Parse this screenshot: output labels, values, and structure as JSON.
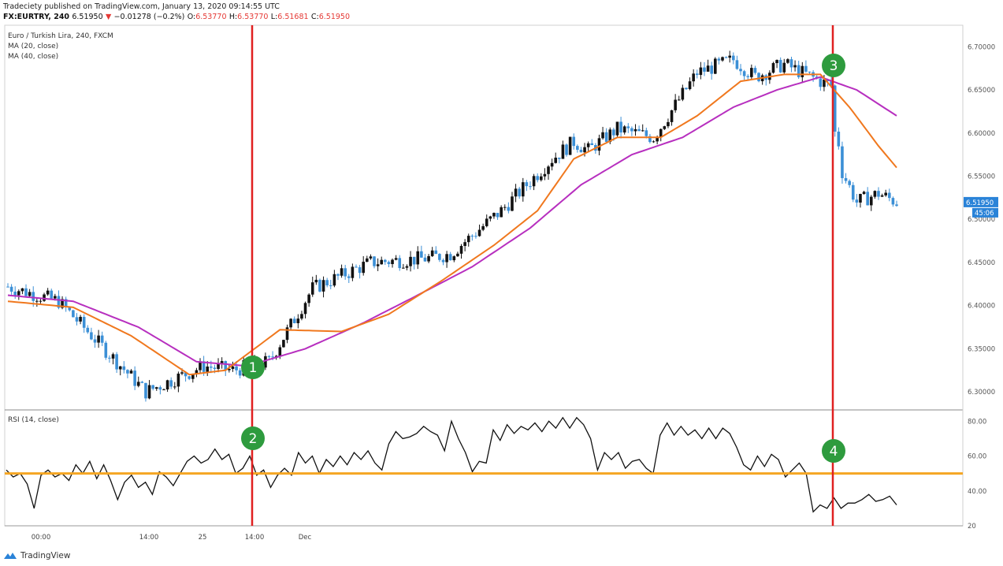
{
  "header": {
    "publisher_line": "Tradeciety published on TradingView.com, January 13, 2020 09:14:55 UTC",
    "symbol": "FX:EURTRY, 240",
    "last": "6.51950",
    "arrow": "▼",
    "change": "−0.01278 (−0.2%)",
    "o_label": "O:",
    "o": "6.53770",
    "h_label": "H:",
    "h": "6.53770",
    "l_label": "L:",
    "l": "6.51681",
    "c_label": "C:",
    "c": "6.51950"
  },
  "legend": {
    "title": "Euro / Turkish Lira, 240, FXCM",
    "ma20": "MA (20, close)",
    "ma40": "MA (40, close)",
    "rsi": "RSI (14, close)"
  },
  "footer": {
    "brand": "TradingView"
  },
  "colors": {
    "up": "#111111",
    "down": "#3b8fd6",
    "ma20": "#f0781e",
    "ma40": "#b72fbf",
    "marker_line": "#e02020",
    "rsi_line": "#111111",
    "rsi_level": "#f5a623",
    "badge": "#2e9b3e",
    "price_label_bg": "#2a83d8"
  },
  "chart_data": [
    {
      "type": "candlestick",
      "title": "Euro / Turkish Lira, 240, FXCM",
      "price_ticks": [
        "6.70000",
        "6.65000",
        "6.60000",
        "6.55000",
        "6.50000",
        "6.45000",
        "6.40000",
        "6.35000",
        "6.30000"
      ],
      "ylim": [
        6.28,
        6.725
      ],
      "x_ticks": [
        "00:00",
        "14:00",
        "25",
        "14:00",
        "Dec"
      ],
      "current_price_label": "6.51950",
      "countdown_label": "45:06",
      "key_points": [
        {
          "bar": 0,
          "price": 6.422
        },
        {
          "bar": 14,
          "price": 6.405
        },
        {
          "bar": 38,
          "price": 6.3
        },
        {
          "bar": 54,
          "price": 6.33
        },
        {
          "bar": 62,
          "price": 6.325
        },
        {
          "bar": 72,
          "price": 6.335
        },
        {
          "bar": 84,
          "price": 6.42
        },
        {
          "bar": 100,
          "price": 6.45
        },
        {
          "bar": 116,
          "price": 6.455
        },
        {
          "bar": 122,
          "price": 6.46
        },
        {
          "bar": 136,
          "price": 6.51
        },
        {
          "bar": 150,
          "price": 6.57
        },
        {
          "bar": 156,
          "price": 6.59
        },
        {
          "bar": 160,
          "price": 6.58
        },
        {
          "bar": 168,
          "price": 6.605
        },
        {
          "bar": 178,
          "price": 6.595
        },
        {
          "bar": 190,
          "price": 6.67
        },
        {
          "bar": 200,
          "price": 6.685
        },
        {
          "bar": 206,
          "price": 6.665
        },
        {
          "bar": 214,
          "price": 6.68
        },
        {
          "bar": 224,
          "price": 6.66
        },
        {
          "bar": 227,
          "price": 6.655
        },
        {
          "bar": 230,
          "price": 6.555
        },
        {
          "bar": 234,
          "price": 6.52
        },
        {
          "bar": 240,
          "price": 6.53
        },
        {
          "bar": 245,
          "price": 6.52
        }
      ],
      "ma20_points": [
        {
          "bar": 0,
          "price": 6.405
        },
        {
          "bar": 18,
          "price": 6.398
        },
        {
          "bar": 34,
          "price": 6.365
        },
        {
          "bar": 50,
          "price": 6.32
        },
        {
          "bar": 60,
          "price": 6.325
        },
        {
          "bar": 75,
          "price": 6.372
        },
        {
          "bar": 92,
          "price": 6.37
        },
        {
          "bar": 105,
          "price": 6.39
        },
        {
          "bar": 120,
          "price": 6.43
        },
        {
          "bar": 134,
          "price": 6.47
        },
        {
          "bar": 146,
          "price": 6.51
        },
        {
          "bar": 156,
          "price": 6.57
        },
        {
          "bar": 168,
          "price": 6.595
        },
        {
          "bar": 180,
          "price": 6.595
        },
        {
          "bar": 190,
          "price": 6.62
        },
        {
          "bar": 202,
          "price": 6.66
        },
        {
          "bar": 214,
          "price": 6.668
        },
        {
          "bar": 224,
          "price": 6.668
        },
        {
          "bar": 232,
          "price": 6.63
        },
        {
          "bar": 240,
          "price": 6.585
        },
        {
          "bar": 245,
          "price": 6.56
        }
      ],
      "ma40_points": [
        {
          "bar": 0,
          "price": 6.412
        },
        {
          "bar": 18,
          "price": 6.405
        },
        {
          "bar": 36,
          "price": 6.375
        },
        {
          "bar": 52,
          "price": 6.335
        },
        {
          "bar": 66,
          "price": 6.33
        },
        {
          "bar": 82,
          "price": 6.35
        },
        {
          "bar": 98,
          "price": 6.38
        },
        {
          "bar": 112,
          "price": 6.41
        },
        {
          "bar": 128,
          "price": 6.445
        },
        {
          "bar": 144,
          "price": 6.49
        },
        {
          "bar": 158,
          "price": 6.54
        },
        {
          "bar": 172,
          "price": 6.575
        },
        {
          "bar": 186,
          "price": 6.595
        },
        {
          "bar": 200,
          "price": 6.63
        },
        {
          "bar": 212,
          "price": 6.65
        },
        {
          "bar": 224,
          "price": 6.665
        },
        {
          "bar": 234,
          "price": 6.65
        },
        {
          "bar": 245,
          "price": 6.62
        }
      ],
      "bar_count": 246
    },
    {
      "type": "line",
      "title": "RSI (14, close)",
      "y_ticks": [
        "80.00",
        "60.00",
        "40.00",
        "20"
      ],
      "ylim": [
        20,
        86
      ],
      "level": 50,
      "values": [
        52,
        48,
        50,
        44,
        30,
        49,
        52,
        48,
        50,
        46,
        55,
        50,
        57,
        47,
        55,
        46,
        35,
        45,
        49,
        42,
        45,
        38,
        51,
        48,
        43,
        50,
        57,
        60,
        56,
        58,
        64,
        58,
        61,
        50,
        53,
        60,
        49,
        52,
        42,
        49,
        53,
        49,
        62,
        56,
        60,
        50,
        58,
        54,
        60,
        55,
        62,
        58,
        63,
        56,
        52,
        67,
        74,
        70,
        71,
        73,
        77,
        74,
        72,
        63,
        80,
        70,
        62,
        51,
        57,
        56,
        75,
        69,
        78,
        73,
        77,
        75,
        79,
        74,
        80,
        76,
        82,
        76,
        82,
        78,
        70,
        52,
        62,
        58,
        62,
        53,
        57,
        58,
        53,
        50,
        72,
        79,
        72,
        77,
        72,
        75,
        70,
        76,
        70,
        76,
        73,
        65,
        55,
        52,
        60,
        54,
        61,
        58,
        48,
        52,
        56,
        50,
        28,
        32,
        30,
        36,
        30,
        33,
        33,
        35,
        38,
        34,
        35,
        37,
        32
      ]
    }
  ],
  "annotations": {
    "badges": [
      "1",
      "2",
      "3",
      "4"
    ]
  }
}
